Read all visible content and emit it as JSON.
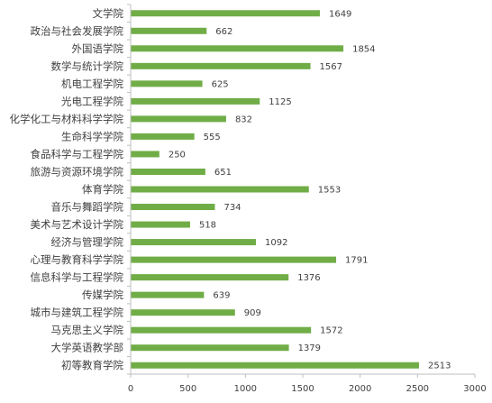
{
  "chart_data": {
    "type": "bar",
    "orientation": "horizontal",
    "categories": [
      "文学院",
      "政治与社会发展学院",
      "外国语学院",
      "数学与统计学院",
      "机电工程学院",
      "光电工程学院",
      "化学化工与材料科学学院",
      "生命科学学院",
      "食品科学与工程学院",
      "旅游与资源环境学院",
      "体育学院",
      "音乐与舞蹈学院",
      "美术与艺术设计学院",
      "经济与管理学院",
      "心理与教育科学学院",
      "信息科学与工程学院",
      "传媒学院",
      "城市与建筑工程学院",
      "马克思主义学院",
      "大学英语教学部",
      "初等教育学院"
    ],
    "values": [
      1649,
      662,
      1854,
      1567,
      625,
      1125,
      832,
      555,
      250,
      651,
      1553,
      734,
      518,
      1092,
      1791,
      1376,
      639,
      909,
      1572,
      1379,
      2513
    ],
    "data_labels": [
      "1649",
      "662",
      "1854",
      "1567",
      "625",
      "1125",
      "832",
      "555",
      "250",
      "651",
      "1553",
      "734",
      "518",
      "1092",
      "1791",
      "1376",
      "639",
      "909",
      "1572",
      "1379",
      "2513"
    ],
    "x_ticks": [
      "0",
      "500",
      "1000",
      "1500",
      "2000",
      "2500",
      "3000"
    ],
    "xlim": [
      0,
      3000
    ],
    "bar_color": "#70ad47",
    "axis_color": "#bfbfbf",
    "grid": false,
    "legend": "none",
    "title": "",
    "xlabel": "",
    "ylabel": ""
  }
}
